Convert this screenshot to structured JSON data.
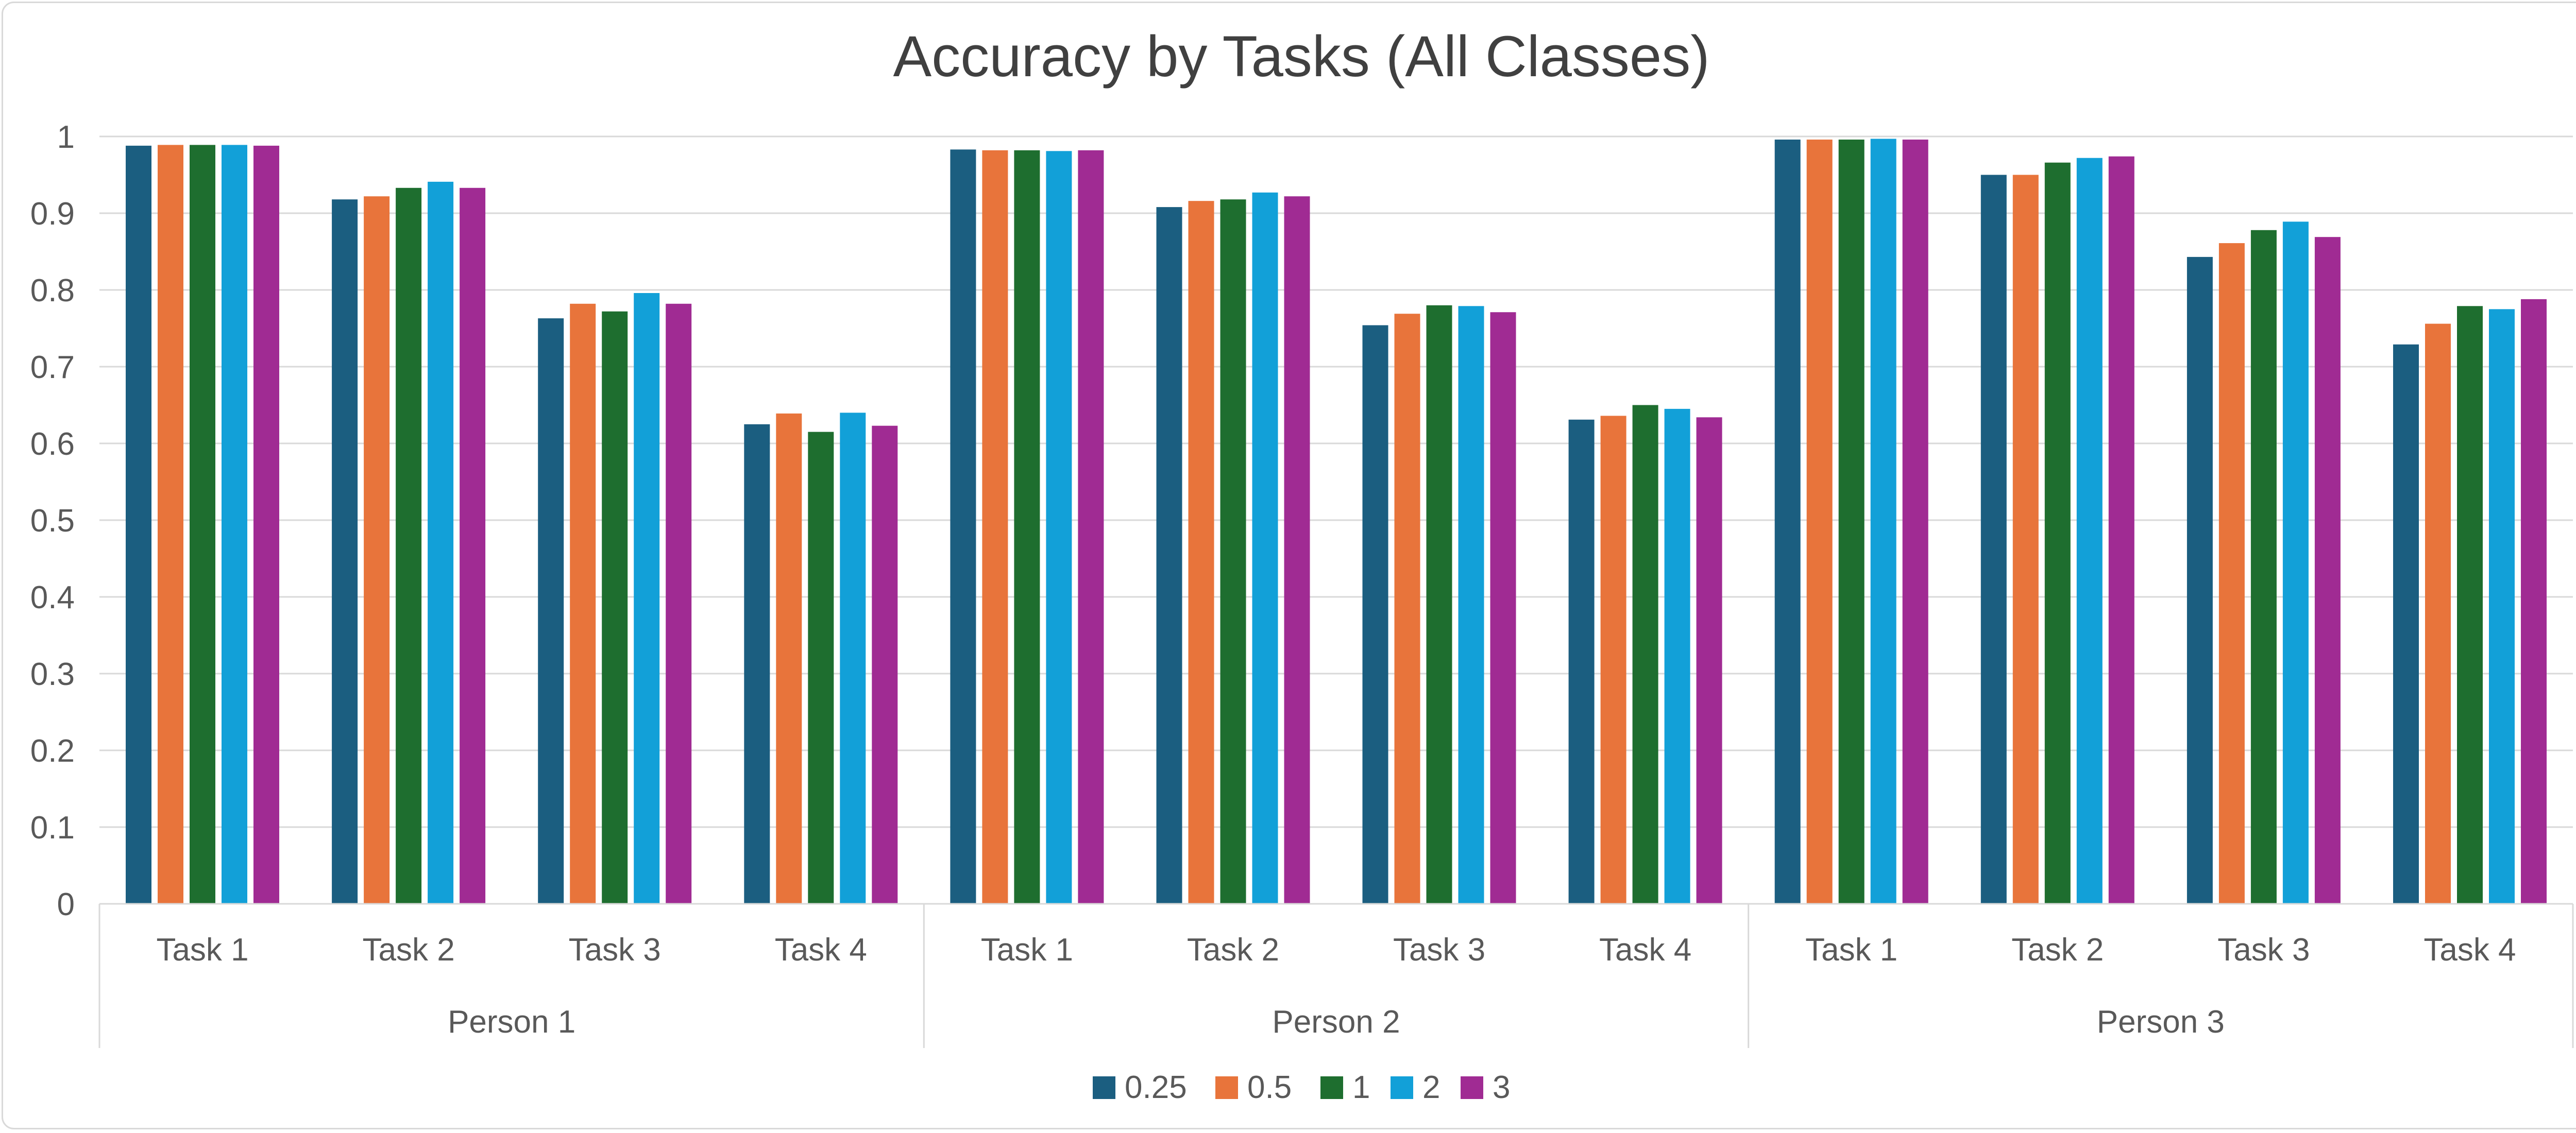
{
  "chart_data": {
    "type": "bar",
    "title": "Accuracy by Tasks (All Classes)",
    "xlabel": "",
    "ylabel": "",
    "ylim": [
      0,
      1
    ],
    "y_ticks": [
      "0",
      "0.1",
      "0.2",
      "0.3",
      "0.4",
      "0.5",
      "0.6",
      "0.7",
      "0.8",
      "0.9",
      "1"
    ],
    "grid": true,
    "legend_position": "bottom",
    "groups": [
      "Person 1",
      "Person 2",
      "Person 3"
    ],
    "categories": [
      "Task 1",
      "Task 2",
      "Task 3",
      "Task 4",
      "Task 1",
      "Task 2",
      "Task 3",
      "Task 4",
      "Task 1",
      "Task 2",
      "Task 3",
      "Task 4"
    ],
    "series": [
      {
        "name": "0.25",
        "color": "#1b5e80",
        "values": [
          0.988,
          0.918,
          0.763,
          0.625,
          0.983,
          0.908,
          0.754,
          0.631,
          0.996,
          0.95,
          0.843,
          0.729
        ]
      },
      {
        "name": "0.5",
        "color": "#e8743b",
        "values": [
          0.989,
          0.922,
          0.782,
          0.639,
          0.982,
          0.916,
          0.769,
          0.636,
          0.996,
          0.95,
          0.861,
          0.756
        ]
      },
      {
        "name": "1",
        "color": "#1e6e2f",
        "values": [
          0.989,
          0.933,
          0.772,
          0.615,
          0.982,
          0.918,
          0.78,
          0.65,
          0.996,
          0.966,
          0.878,
          0.779
        ]
      },
      {
        "name": "2",
        "color": "#12a0d8",
        "values": [
          0.989,
          0.941,
          0.796,
          0.64,
          0.981,
          0.927,
          0.779,
          0.645,
          0.997,
          0.972,
          0.889,
          0.775
        ]
      },
      {
        "name": "3",
        "color": "#a02b93",
        "values": [
          0.988,
          0.933,
          0.782,
          0.623,
          0.982,
          0.922,
          0.771,
          0.634,
          0.996,
          0.974,
          0.869,
          0.788
        ]
      }
    ]
  }
}
